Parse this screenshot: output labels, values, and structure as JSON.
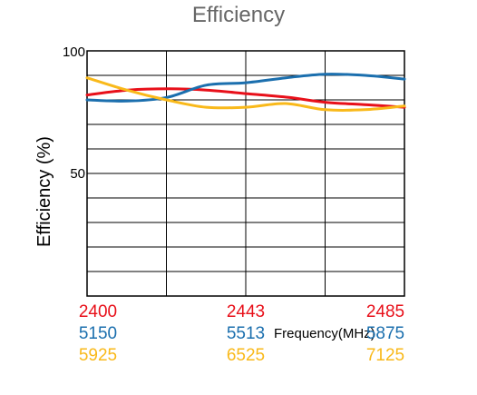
{
  "chart_data": {
    "type": "line",
    "title": "Efficiency",
    "ylabel": "Efficiency (%)",
    "xlabel": "Frequency(MHz)",
    "ylim": [
      0,
      100
    ],
    "yticks": [
      "100",
      "50"
    ],
    "grid": true,
    "series": [
      {
        "color": "#e8101a",
        "tick_labels": [
          "2400",
          "2443",
          "2485"
        ],
        "x": [
          2400,
          2411,
          2422,
          2432,
          2443,
          2454,
          2464,
          2475,
          2485
        ],
        "y": [
          82,
          84,
          84.5,
          84,
          82.5,
          81,
          79,
          78,
          77
        ]
      },
      {
        "color": "#1b6fae",
        "tick_labels": [
          "5150",
          "5513",
          "5875"
        ],
        "x": [
          5150,
          5241,
          5332,
          5422,
          5513,
          5604,
          5694,
          5785,
          5875
        ],
        "y": [
          80,
          79.5,
          81,
          86,
          87,
          89,
          90.5,
          90,
          88.5
        ]
      },
      {
        "color": "#f9b91a",
        "tick_labels": [
          "5925",
          "6525",
          "7125"
        ],
        "x": [
          5925,
          6075,
          6225,
          6375,
          6525,
          6675,
          6825,
          6975,
          7125
        ],
        "y": [
          89,
          84,
          80,
          77,
          77,
          78.5,
          76,
          76,
          77.5
        ]
      }
    ]
  }
}
